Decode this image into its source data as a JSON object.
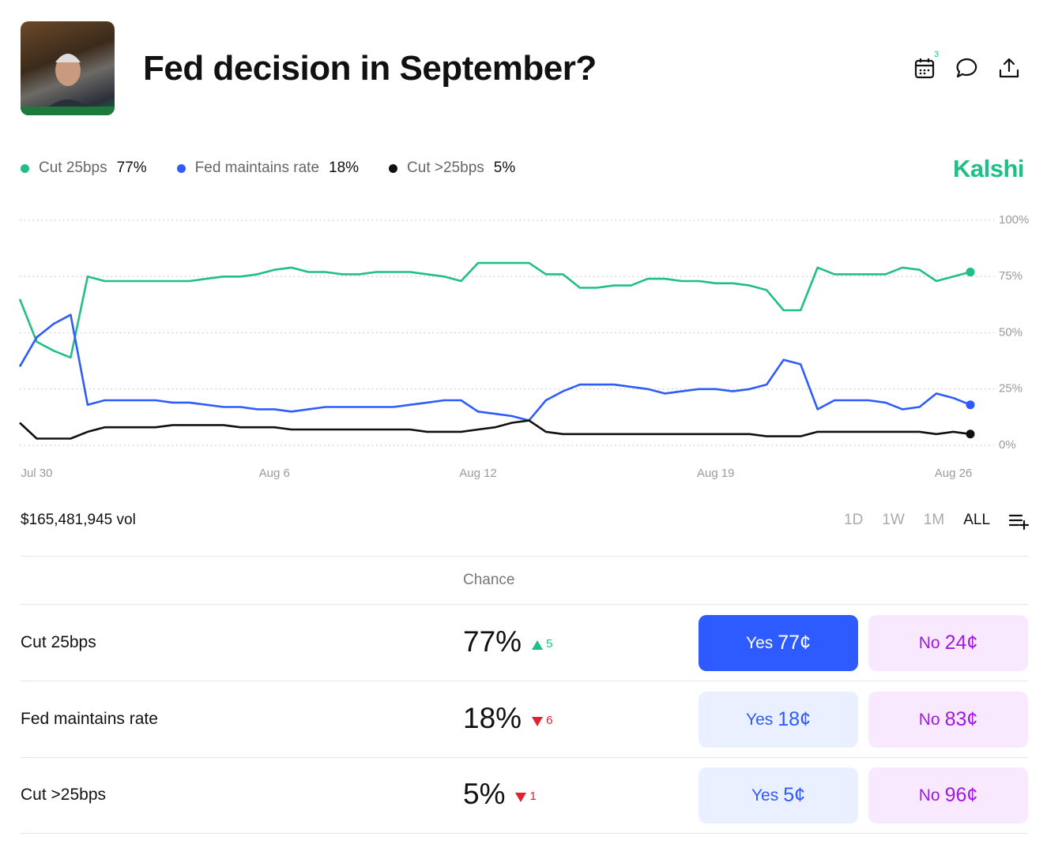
{
  "header": {
    "title": "Fed decision in September?",
    "calendar_badge": 3
  },
  "brand": "Kalshi",
  "chart_data": {
    "type": "line",
    "categories": [
      null,
      "Jul 30",
      null,
      null,
      null,
      null,
      null,
      null,
      null,
      null,
      null,
      null,
      null,
      null,
      null,
      "Aug 6",
      null,
      null,
      null,
      null,
      null,
      null,
      null,
      null,
      null,
      null,
      null,
      "Aug 12",
      null,
      null,
      null,
      null,
      null,
      null,
      null,
      null,
      null,
      null,
      null,
      null,
      null,
      "Aug 19",
      null,
      null,
      null,
      null,
      null,
      null,
      null,
      null,
      null,
      null,
      null,
      null,
      null,
      "Aug 26",
      null
    ],
    "series": [
      {
        "name": "Cut 25bps",
        "current": "77%",
        "color": "#1fbf85",
        "values": [
          65,
          46,
          42,
          39,
          75,
          73,
          73,
          73,
          73,
          73,
          73,
          74,
          75,
          75,
          76,
          78,
          79,
          77,
          77,
          76,
          76,
          77,
          77,
          77,
          76,
          75,
          73,
          81,
          81,
          81,
          81,
          76,
          76,
          70,
          70,
          71,
          71,
          74,
          74,
          73,
          73,
          72,
          72,
          71,
          69,
          60,
          60,
          79,
          76,
          76,
          76,
          76,
          79,
          78,
          73,
          75,
          77
        ]
      },
      {
        "name": "Fed maintains rate",
        "current": "18%",
        "color": "#2e5bff",
        "values": [
          35,
          48,
          54,
          58,
          18,
          20,
          20,
          20,
          20,
          19,
          19,
          18,
          17,
          17,
          16,
          16,
          15,
          16,
          17,
          17,
          17,
          17,
          17,
          18,
          19,
          20,
          20,
          15,
          14,
          13,
          11,
          20,
          24,
          27,
          27,
          27,
          26,
          25,
          23,
          24,
          25,
          25,
          24,
          25,
          27,
          38,
          36,
          16,
          20,
          20,
          20,
          19,
          16,
          17,
          23,
          21,
          18
        ]
      },
      {
        "name": "Cut >25bps",
        "current": "5%",
        "color": "#111111",
        "values": [
          10,
          3,
          3,
          3,
          6,
          8,
          8,
          8,
          8,
          9,
          9,
          9,
          9,
          8,
          8,
          8,
          7,
          7,
          7,
          7,
          7,
          7,
          7,
          7,
          6,
          6,
          6,
          7,
          8,
          10,
          11,
          6,
          5,
          5,
          5,
          5,
          5,
          5,
          5,
          5,
          5,
          5,
          5,
          5,
          4,
          4,
          4,
          6,
          6,
          6,
          6,
          6,
          6,
          6,
          5,
          6,
          5
        ]
      }
    ],
    "ylim": [
      0,
      100
    ],
    "yticks": [
      {
        "value": 0,
        "label": "0%"
      },
      {
        "value": 25,
        "label": "25%"
      },
      {
        "value": 50,
        "label": "50%"
      },
      {
        "value": 75,
        "label": "75%"
      },
      {
        "value": 100,
        "label": "100%"
      }
    ],
    "grid": true
  },
  "volume": "$165,481,945 vol",
  "ranges": [
    "1D",
    "1W",
    "1M",
    "ALL"
  ],
  "table": {
    "header": "Chance",
    "rows": [
      {
        "name": "Cut 25bps",
        "chance": "77%",
        "change": 5,
        "direction": "up",
        "yes": "Yes",
        "yes_price": "77¢",
        "no": "No",
        "no_price": "24¢"
      },
      {
        "name": "Fed maintains rate",
        "chance": "18%",
        "change": 6,
        "direction": "down",
        "yes": "Yes",
        "yes_price": "18¢",
        "no": "No",
        "no_price": "83¢"
      },
      {
        "name": "Cut >25bps",
        "chance": "5%",
        "change": 1,
        "direction": "down",
        "yes": "Yes",
        "yes_price": "5¢",
        "no": "No",
        "no_price": "96¢"
      }
    ]
  }
}
